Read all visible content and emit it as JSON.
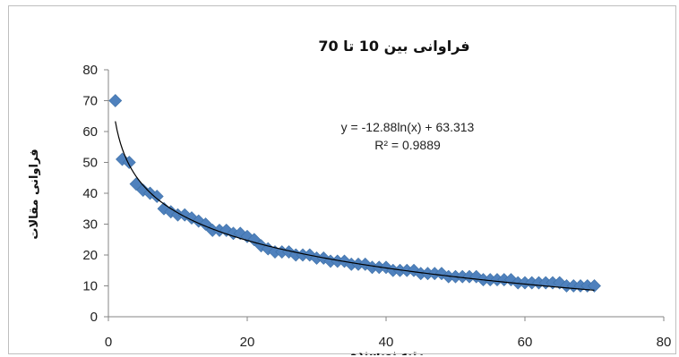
{
  "chart_data": {
    "type": "scatter",
    "title": "فراوانی بین 10 تا 70",
    "xlabel": "رتبه نویسنده",
    "ylabel": "فراوانی مقالات",
    "xlim": [
      0,
      80
    ],
    "ylim": [
      0,
      80
    ],
    "x_ticks": [
      "0",
      "20",
      "40",
      "60",
      "80"
    ],
    "y_ticks": [
      "0",
      "10",
      "20",
      "30",
      "40",
      "50",
      "60",
      "70",
      "80"
    ],
    "grid": false,
    "trendline": {
      "type": "logarithmic",
      "a": -12.88,
      "b": 63.313,
      "equation": "y = -12.88ln(x) + 63.313",
      "r_squared": "R² = 0.9889"
    },
    "series": [
      {
        "marker": "diamond",
        "color": "#4f81bd",
        "x": [
          1,
          2,
          3,
          4,
          5,
          6,
          7,
          8,
          9,
          10,
          11,
          12,
          13,
          14,
          15,
          16,
          17,
          18,
          19,
          20,
          21,
          22,
          23,
          24,
          25,
          26,
          27,
          28,
          29,
          30,
          31,
          32,
          33,
          34,
          35,
          36,
          37,
          38,
          39,
          40,
          41,
          42,
          43,
          44,
          45,
          46,
          47,
          48,
          49,
          50,
          51,
          52,
          53,
          54,
          55,
          56,
          57,
          58,
          59,
          60,
          61,
          62,
          63,
          64,
          65,
          66,
          67,
          68,
          69,
          70
        ],
        "y": [
          70,
          51,
          50,
          43,
          41,
          40,
          39,
          35,
          34,
          33,
          33,
          32,
          31,
          30,
          28,
          28,
          28,
          27,
          27,
          26,
          25,
          23,
          22,
          21,
          21,
          21,
          20,
          20,
          20,
          19,
          19,
          18,
          18,
          18,
          17,
          17,
          17,
          16,
          16,
          16,
          15,
          15,
          15,
          15,
          14,
          14,
          14,
          14,
          13,
          13,
          13,
          13,
          13,
          12,
          12,
          12,
          12,
          12,
          11,
          11,
          11,
          11,
          11,
          11,
          11,
          10,
          10,
          10,
          10,
          10
        ]
      }
    ]
  }
}
